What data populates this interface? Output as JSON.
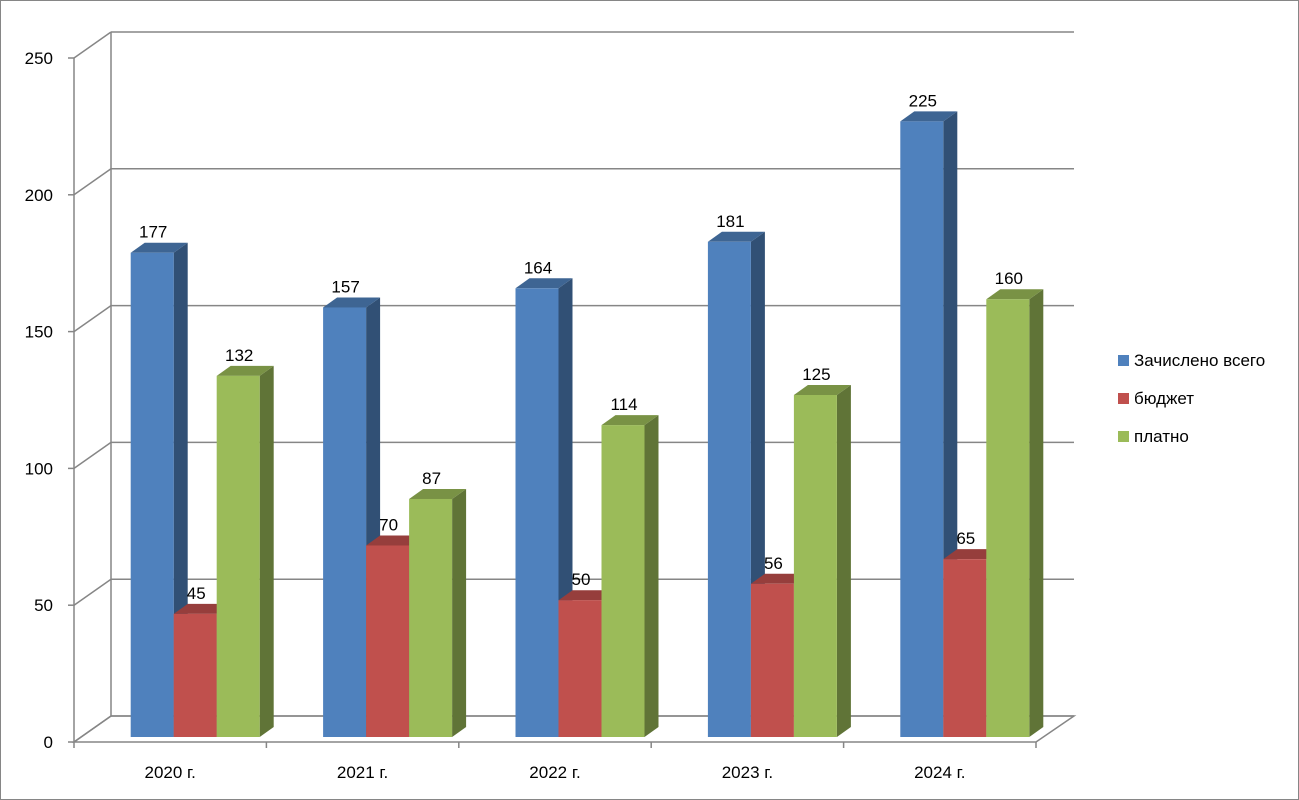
{
  "chart_data": {
    "type": "bar",
    "categories": [
      "2020 г.",
      "2021 г.",
      "2022 г.",
      "2023 г.",
      "2024 г."
    ],
    "series": [
      {
        "name": "Зачислено всего",
        "values": [
          177,
          157,
          164,
          181,
          225
        ],
        "color": "#4F81BD"
      },
      {
        "name": "бюджет",
        "values": [
          45,
          70,
          50,
          56,
          65
        ],
        "color": "#C0504D"
      },
      {
        "name": "платно",
        "values": [
          132,
          87,
          114,
          125,
          160
        ],
        "color": "#9BBB59"
      }
    ],
    "title": "",
    "xlabel": "",
    "ylabel": "",
    "ylim": [
      0,
      250
    ],
    "yticks": [
      "0",
      "50",
      "100",
      "150",
      "200",
      "250"
    ],
    "grid": true,
    "legend_position": "right",
    "style": "3d-clustered-column",
    "data_labels": true
  }
}
